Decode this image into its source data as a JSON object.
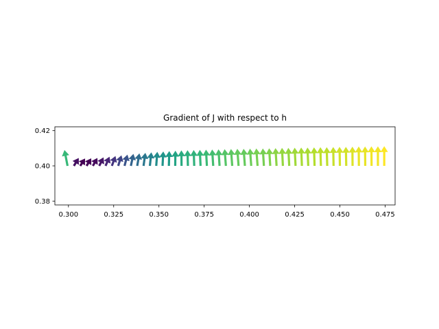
{
  "chart_data": {
    "type": "quiver",
    "title": "Gradient of J with respect to h",
    "xlabel": "",
    "ylabel": "",
    "xlim": [
      0.2925,
      0.4805
    ],
    "ylim": [
      0.3778,
      0.4222
    ],
    "xticks": [
      0.3,
      0.325,
      0.35,
      0.375,
      0.4,
      0.425,
      0.45,
      0.475
    ],
    "xtick_labels": [
      "0.300",
      "0.325",
      "0.350",
      "0.375",
      "0.400",
      "0.425",
      "0.450",
      "0.475"
    ],
    "yticks": [
      0.38,
      0.4,
      0.42
    ],
    "ytick_labels": [
      "0.38",
      "0.40",
      "0.42"
    ],
    "grid": false,
    "colormap": "viridis",
    "arrows": {
      "x_start": 0.2995,
      "x_step": 0.0035,
      "count": 51,
      "y": 0.4,
      "u": [
        -0.0017,
        0.0027,
        0.0027,
        0.0026,
        0.0025,
        0.0024,
        0.0022,
        0.002,
        0.0018,
        0.0016,
        0.0014,
        0.0012,
        0.001,
        0.0008,
        0.0006,
        0.0004,
        0.0002,
        0.0001,
        -0.0001,
        -0.0002,
        -0.0003,
        -0.0004,
        -0.0005,
        -0.0006,
        -0.0006,
        -0.0007,
        -0.0007,
        -0.0007,
        -0.0007,
        -0.0007,
        -0.0007,
        -0.0006,
        -0.0006,
        -0.0006,
        -0.0005,
        -0.0005,
        -0.0005,
        -0.0004,
        -0.0004,
        -0.0003,
        -0.0003,
        -0.0003,
        -0.0002,
        -0.0002,
        -0.0002,
        -0.0001,
        -0.0001,
        -0.0001,
        -0.0001,
        0.0,
        0.0
      ],
      "v": [
        0.009,
        0.0045,
        0.0042,
        0.0043,
        0.0045,
        0.0048,
        0.0052,
        0.0056,
        0.006,
        0.0064,
        0.0068,
        0.0071,
        0.0074,
        0.0077,
        0.008,
        0.0082,
        0.0084,
        0.0086,
        0.0088,
        0.0089,
        0.009,
        0.0091,
        0.0092,
        0.0093,
        0.0094,
        0.0095,
        0.0096,
        0.0097,
        0.0097,
        0.0098,
        0.0099,
        0.0099,
        0.01,
        0.0101,
        0.0102,
        0.0102,
        0.0103,
        0.0104,
        0.0104,
        0.0105,
        0.0106,
        0.0106,
        0.0107,
        0.0108,
        0.0108,
        0.0109,
        0.011,
        0.011,
        0.0111,
        0.0111,
        0.0112
      ]
    }
  }
}
